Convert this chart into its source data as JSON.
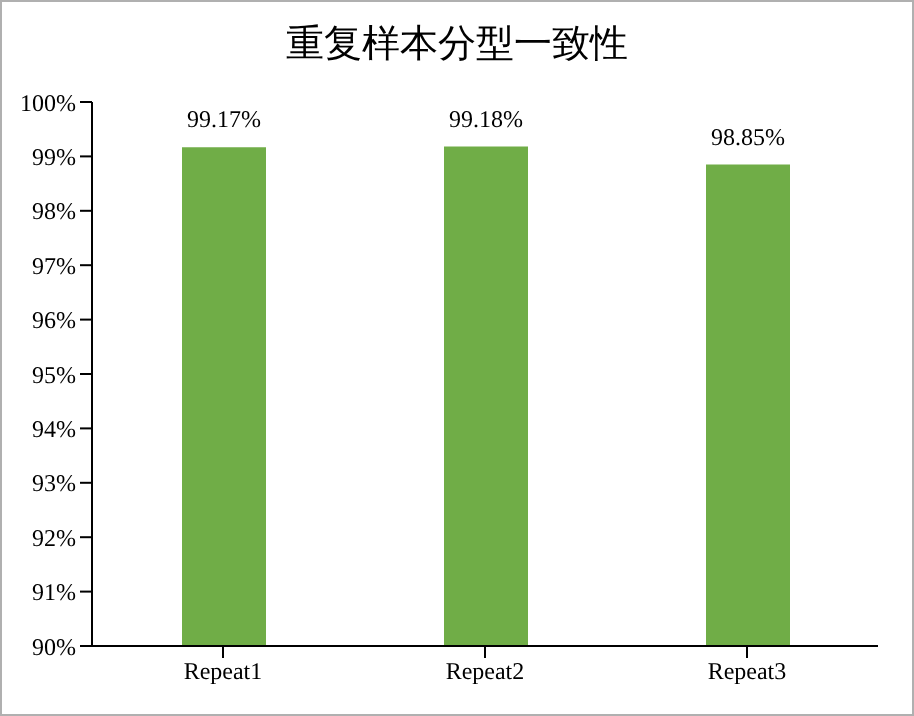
{
  "chart_data": {
    "type": "bar",
    "title": "重复样本分型一致性",
    "categories": [
      "Repeat1",
      "Repeat2",
      "Repeat3"
    ],
    "values": [
      99.17,
      99.18,
      98.85
    ],
    "value_labels": [
      "99.17%",
      "99.18%",
      "98.85%"
    ],
    "color": "#70ad47",
    "ylim": [
      90,
      100
    ],
    "yticks": [
      {
        "value": 90,
        "label": "90%"
      },
      {
        "value": 91,
        "label": "91%"
      },
      {
        "value": 92,
        "label": "92%"
      },
      {
        "value": 93,
        "label": "93%"
      },
      {
        "value": 94,
        "label": "94%"
      },
      {
        "value": 95,
        "label": "95%"
      },
      {
        "value": 96,
        "label": "96%"
      },
      {
        "value": 97,
        "label": "97%"
      },
      {
        "value": 98,
        "label": "98%"
      },
      {
        "value": 99,
        "label": "99%"
      },
      {
        "value": 100,
        "label": "100%"
      }
    ],
    "grid": false,
    "legend": false
  }
}
